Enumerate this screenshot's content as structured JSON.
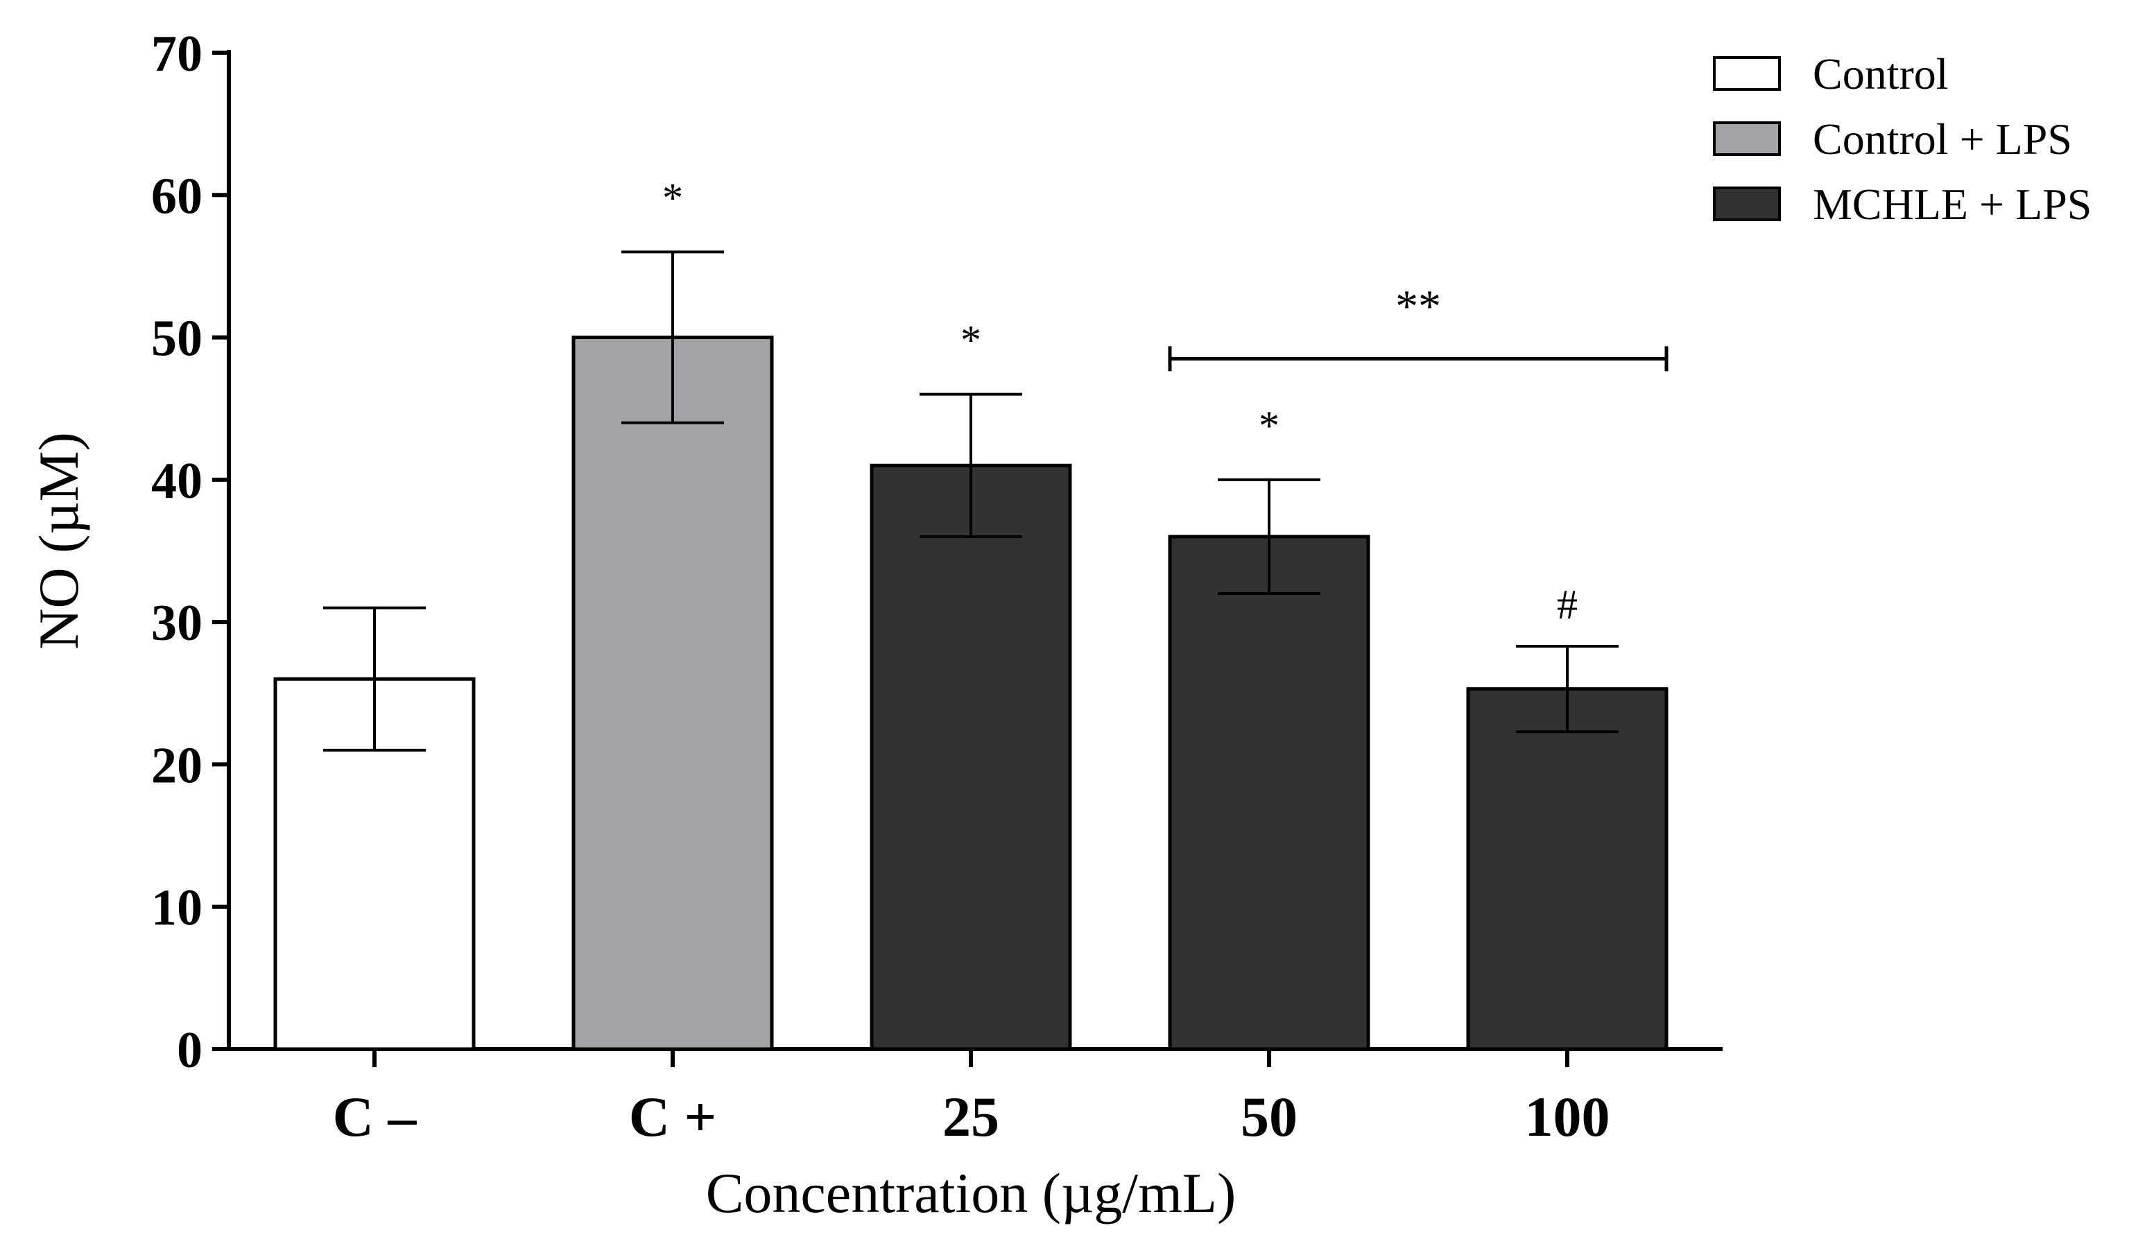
{
  "chart_data": {
    "type": "bar",
    "title": "",
    "xlabel": "Concentration (µg/mL)",
    "ylabel": "NO (µM)",
    "ylim": [
      0,
      70
    ],
    "yticks": [
      "0",
      "10",
      "20",
      "30",
      "40",
      "50",
      "60",
      "70"
    ],
    "categories": [
      "C –",
      "C +",
      "25",
      "50",
      "100"
    ],
    "values": [
      26,
      50,
      41,
      36,
      25.3
    ],
    "errors": [
      5,
      6,
      5,
      4,
      3
    ],
    "bar_groups": [
      "Control",
      "Control + LPS",
      "MCHLE + LPS",
      "MCHLE + LPS",
      "MCHLE + LPS"
    ],
    "annotations": [
      "",
      "*",
      "*",
      "*",
      "#"
    ],
    "bracket": {
      "from_category": "50",
      "to_category": "100",
      "label": "**",
      "y": 48.5
    },
    "legend": {
      "position": "top-right",
      "entries": [
        {
          "label": "Control",
          "color": "#ffffff"
        },
        {
          "label": "Control + LPS",
          "color": "#a3a3a7"
        },
        {
          "label": "MCHLE + LPS",
          "color": "#323232"
        }
      ]
    }
  }
}
